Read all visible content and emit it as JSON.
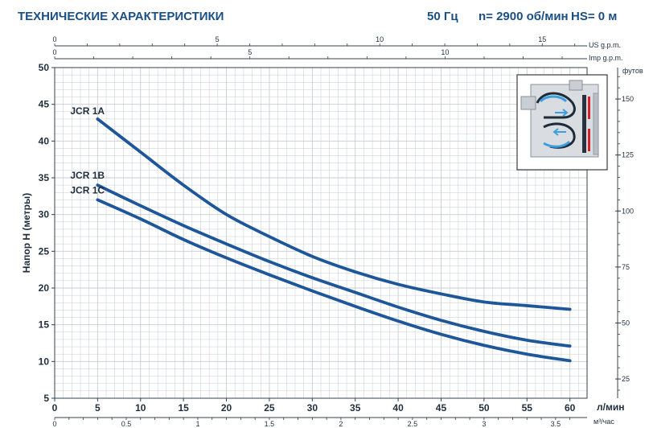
{
  "header": {
    "title": "ТЕХНИЧЕСКИЕ ХАРАКТЕРИСТИКИ",
    "freq": "50 Гц",
    "speed": "n= 2900 об/мин",
    "hs": "HS= 0 м"
  },
  "chart_data": {
    "type": "line",
    "title": "",
    "xlabel": "л/мин",
    "ylabel": "Напор H (метры)",
    "xlim": [
      0,
      62
    ],
    "ylim": [
      5,
      50
    ],
    "grid": true,
    "x_ticks": [
      0,
      5,
      10,
      15,
      20,
      25,
      30,
      35,
      40,
      45,
      50,
      55,
      60
    ],
    "y_ticks": [
      5,
      10,
      15,
      20,
      25,
      30,
      35,
      40,
      45,
      50
    ],
    "secondary_axes": {
      "top_us_gpm": {
        "label": "US g.p.m.",
        "ticks": [
          0,
          5,
          10,
          15
        ]
      },
      "top_imp_gpm": {
        "label": "Imp g.p.m.",
        "ticks": [
          0,
          5,
          10
        ]
      },
      "bottom_m3h": {
        "label": "м³/час",
        "ticks": [
          "0",
          "0.5",
          "1",
          "1.5",
          "2",
          "2.5",
          "3",
          "3.5"
        ]
      },
      "right_feet": {
        "label": "футов",
        "ticks": [
          25,
          50,
          75,
          100,
          125,
          150
        ]
      }
    },
    "series": [
      {
        "name": "JCR 1A",
        "x": [
          5,
          10,
          15,
          20,
          25,
          30,
          35,
          40,
          45,
          50,
          55,
          60
        ],
        "y": [
          43,
          38.5,
          34,
          30,
          27,
          24.3,
          22.2,
          20.5,
          19.2,
          18.1,
          17.6,
          17.1
        ]
      },
      {
        "name": "JCR 1B",
        "x": [
          5,
          10,
          15,
          20,
          25,
          30,
          35,
          40,
          45,
          50,
          55,
          60
        ],
        "y": [
          34,
          31.2,
          28.5,
          26,
          23.6,
          21.4,
          19.4,
          17.4,
          15.6,
          14.1,
          12.9,
          12.1
        ]
      },
      {
        "name": "JCR 1C",
        "x": [
          5,
          10,
          15,
          20,
          25,
          30,
          35,
          40,
          45,
          50,
          55,
          60
        ],
        "y": [
          32,
          29.4,
          26.6,
          24.1,
          21.8,
          19.6,
          17.5,
          15.5,
          13.7,
          12.2,
          11,
          10.1
        ]
      }
    ],
    "line_color": "#1e5799",
    "grid_color": "#c6ccd2"
  }
}
